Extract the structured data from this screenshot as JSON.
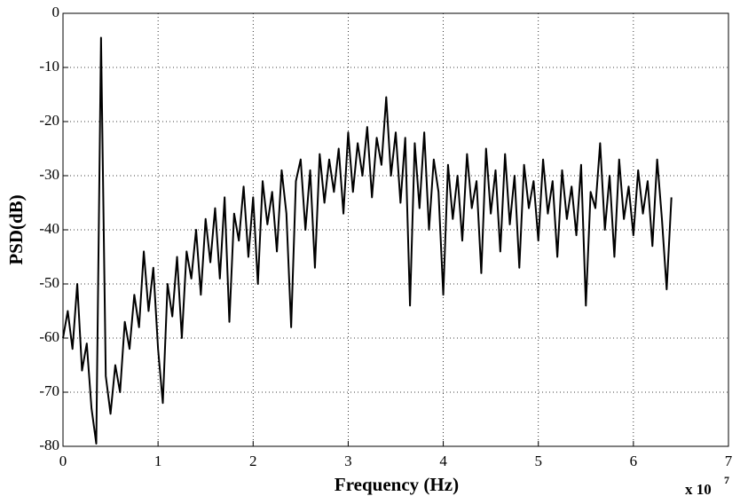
{
  "chart_data": {
    "type": "line",
    "xlabel": "Frequency (Hz)",
    "ylabel": "PSD(dB)",
    "x_multiplier": {
      "base": "x 10",
      "exponent": "7"
    },
    "x": [
      0,
      0.05,
      0.1,
      0.15,
      0.2,
      0.25,
      0.3,
      0.35,
      0.4,
      0.45,
      0.5,
      0.55,
      0.6,
      0.65,
      0.7,
      0.75,
      0.8,
      0.85,
      0.9,
      0.95,
      1.0,
      1.05,
      1.1,
      1.15,
      1.2,
      1.25,
      1.3,
      1.35,
      1.4,
      1.45,
      1.5,
      1.55,
      1.6,
      1.65,
      1.7,
      1.75,
      1.8,
      1.85,
      1.9,
      1.95,
      2.0,
      2.05,
      2.1,
      2.15,
      2.2,
      2.25,
      2.3,
      2.35,
      2.4,
      2.45,
      2.5,
      2.55,
      2.6,
      2.65,
      2.7,
      2.75,
      2.8,
      2.85,
      2.9,
      2.95,
      3.0,
      3.05,
      3.1,
      3.15,
      3.2,
      3.25,
      3.3,
      3.35,
      3.4,
      3.45,
      3.5,
      3.55,
      3.6,
      3.65,
      3.7,
      3.75,
      3.8,
      3.85,
      3.9,
      3.95,
      4.0,
      4.05,
      4.1,
      4.15,
      4.2,
      4.25,
      4.3,
      4.35,
      4.4,
      4.45,
      4.5,
      4.55,
      4.6,
      4.65,
      4.7,
      4.75,
      4.8,
      4.85,
      4.9,
      4.95,
      5.0,
      5.05,
      5.1,
      5.15,
      5.2,
      5.25,
      5.3,
      5.35,
      5.4,
      5.45,
      5.5,
      5.55,
      5.6,
      5.65,
      5.7,
      5.75,
      5.8,
      5.85,
      5.9,
      5.95,
      6.0,
      6.05,
      6.1,
      6.15,
      6.2,
      6.25,
      6.3,
      6.35,
      6.4
    ],
    "series": [
      {
        "color": "#000000",
        "values": [
          -60,
          -55,
          -62,
          -50,
          -66,
          -61,
          -73,
          -79.5,
          -4.5,
          -67,
          -74,
          -65,
          -70,
          -57,
          -62,
          -52,
          -58,
          -44,
          -55,
          -47,
          -62,
          -72,
          -50,
          -56,
          -45,
          -60,
          -44,
          -49,
          -40,
          -52,
          -38,
          -46,
          -36,
          -49,
          -34,
          -57,
          -37,
          -42,
          -32,
          -45,
          -34,
          -50,
          -31,
          -39,
          -33,
          -44,
          -29,
          -37,
          -58,
          -31,
          -27,
          -40,
          -29,
          -47,
          -26,
          -35,
          -27,
          -33,
          -25,
          -37,
          -22,
          -33,
          -24,
          -30,
          -21,
          -34,
          -23,
          -28,
          -15.5,
          -30,
          -22,
          -35,
          -23,
          -54,
          -24,
          -36,
          -22,
          -40,
          -27,
          -33,
          -52,
          -28,
          -38,
          -30,
          -42,
          -26,
          -36,
          -31,
          -48,
          -25,
          -37,
          -29,
          -44,
          -26,
          -39,
          -30,
          -47,
          -28,
          -36,
          -31,
          -42,
          -27,
          -37,
          -31,
          -45,
          -29,
          -38,
          -32,
          -41,
          -28,
          -54,
          -33,
          -36,
          -24,
          -40,
          -30,
          -45,
          -27,
          -38,
          -32,
          -41,
          -29,
          -37,
          -31,
          -43,
          -27,
          -38,
          -51,
          -34
        ]
      }
    ],
    "xlim": [
      0,
      7
    ],
    "xticks": [
      0,
      1,
      2,
      3,
      4,
      5,
      6,
      7
    ],
    "ylim": [
      -80,
      0
    ],
    "yticks": [
      -80,
      -70,
      -60,
      -50,
      -40,
      -30,
      -20,
      -10,
      0
    ],
    "grid": true
  }
}
